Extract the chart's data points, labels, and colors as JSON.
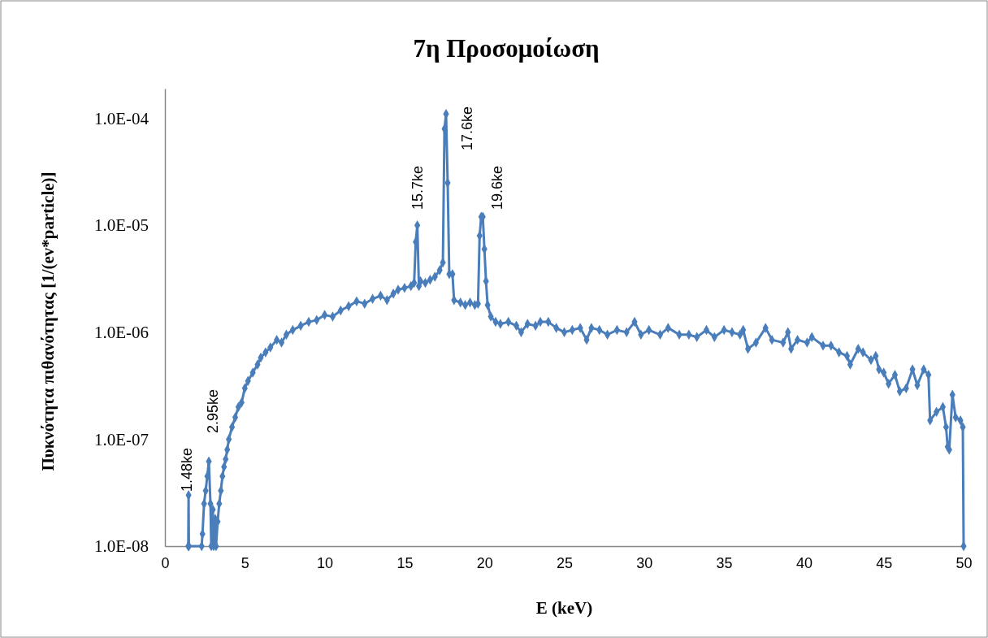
{
  "chart_data": {
    "type": "line",
    "title": "7η Προσομοίωση",
    "xlabel": "E (keV)",
    "ylabel": "Πυκνότητα πιθανότητας [1/(ev*particle)]",
    "log": "y",
    "marker": "diamond",
    "line_style": "solid",
    "grid": false,
    "xlim": [
      0,
      50
    ],
    "xticks": [
      0,
      5,
      10,
      15,
      20,
      25,
      30,
      35,
      40,
      45,
      50
    ],
    "ylim": [
      1e-08,
      0.00019
    ],
    "yticks": [
      {
        "value": 1e-08,
        "label": "1.0E-08"
      },
      {
        "value": 1e-07,
        "label": "1.0E-07"
      },
      {
        "value": 1e-06,
        "label": "1.0E-06"
      },
      {
        "value": 1e-05,
        "label": "1.0E-05"
      },
      {
        "value": 0.0001,
        "label": "1.0E-04"
      }
    ],
    "annotations": [
      "1.48ke",
      "2.95ke",
      "15.7ke",
      "17.6ke",
      "19.6ke"
    ],
    "series": [
      {
        "color": "#4a7ebb",
        "x": [
          1.46,
          1.48,
          1.5,
          2.3,
          2.35,
          2.45,
          2.55,
          2.65,
          2.75,
          2.85,
          2.9,
          3.0,
          3.05,
          3.15,
          3.2,
          3.3,
          3.4,
          3.5,
          3.6,
          3.7,
          3.8,
          3.9,
          4.0,
          4.2,
          4.4,
          4.6,
          4.8,
          5.0,
          5.2,
          5.5,
          5.8,
          6.0,
          6.3,
          6.6,
          7.0,
          7.3,
          7.6,
          8.0,
          8.5,
          9.0,
          9.5,
          10,
          10.5,
          11,
          11.5,
          12,
          12.5,
          13,
          13.5,
          13.9,
          14.3,
          14.6,
          15,
          15.4,
          15.6,
          15.7,
          15.8,
          15.9,
          16.0,
          16.3,
          16.6,
          16.9,
          17.2,
          17.4,
          17.5,
          17.6,
          17.7,
          17.8,
          18.0,
          18.1,
          18.5,
          18.8,
          19.1,
          19.4,
          19.6,
          19.7,
          19.8,
          19.9,
          20.0,
          20.1,
          20.2,
          20.4,
          20.7,
          21,
          21.5,
          22,
          22.3,
          22.7,
          23.2,
          23.5,
          24,
          24.5,
          25,
          25.5,
          26,
          26.4,
          26.7,
          27.2,
          27.7,
          28.3,
          28.9,
          29.4,
          29.8,
          30.3,
          31,
          31.5,
          32.2,
          32.8,
          33.3,
          33.9,
          34.4,
          35,
          35.5,
          36,
          36.2,
          36.5,
          37,
          37.6,
          38,
          38.7,
          39,
          39.2,
          39.6,
          40.2,
          40.5,
          41.2,
          41.7,
          42.2,
          42.7,
          42.9,
          43.4,
          43.7,
          44.2,
          44.5,
          44.7,
          45.0,
          45.3,
          45.7,
          46.0,
          46.4,
          46.8,
          47.1,
          47.5,
          47.8,
          47.9,
          48.3,
          48.7,
          48.9,
          49.0,
          49.1,
          49.3,
          49.5,
          49.8,
          49.95,
          50
        ],
        "values": [
          1e-08,
          3e-08,
          1e-08,
          1e-08,
          1.3e-08,
          2.5e-08,
          3.3e-08,
          4.5e-08,
          6.2e-08,
          2.5e-08,
          1e-08,
          2.2e-08,
          1e-08,
          1.8e-08,
          1e-08,
          1.7e-08,
          2.5e-08,
          3.3e-08,
          4.5e-08,
          5.5e-08,
          6.5e-08,
          8e-08,
          1e-07,
          1.3e-07,
          1.6e-07,
          2e-07,
          2.2e-07,
          3e-07,
          3.5e-07,
          4.2e-07,
          5e-07,
          5.8e-07,
          6.5e-07,
          7.2e-07,
          8.5e-07,
          8e-07,
          9.5e-07,
          1.05e-06,
          1.15e-06,
          1.25e-06,
          1.3e-06,
          1.45e-06,
          1.4e-06,
          1.6e-06,
          1.75e-06,
          1.95e-06,
          1.85e-06,
          2.05e-06,
          2.2e-06,
          2e-06,
          2.3e-06,
          2.5e-06,
          2.6e-06,
          2.7e-06,
          2.9e-06,
          7e-06,
          1e-05,
          2.7e-06,
          3e-06,
          2.9e-06,
          3.1e-06,
          3.3e-06,
          3.8e-06,
          4.5e-06,
          8e-05,
          0.00011,
          2.5e-05,
          3.5e-06,
          3.5e-06,
          2e-06,
          1.9e-06,
          1.8e-06,
          1.9e-06,
          1.8e-06,
          1.85e-06,
          8e-06,
          1.2e-05,
          1.2e-05,
          6e-06,
          3e-06,
          1.8e-06,
          1.4e-06,
          1.25e-06,
          1.2e-06,
          1.25e-06,
          1.15e-06,
          1e-06,
          1.2e-06,
          1.15e-06,
          1.25e-06,
          1.25e-06,
          1.1e-06,
          1e-06,
          1.05e-06,
          1.1e-06,
          8.5e-07,
          1.1e-06,
          1.05e-06,
          9.5e-07,
          1.05e-06,
          1e-06,
          1.25e-06,
          9.5e-07,
          1.05e-06,
          9.5e-07,
          1.1e-06,
          9.5e-07,
          9.5e-07,
          9e-07,
          1.05e-06,
          9e-07,
          1.05e-06,
          1e-06,
          9.5e-07,
          1.05e-06,
          7e-07,
          8e-07,
          1.1e-06,
          8.5e-07,
          8e-07,
          1e-06,
          7e-07,
          8.5e-07,
          8e-07,
          9e-07,
          7.5e-07,
          7.5e-07,
          6.5e-07,
          6e-07,
          5e-07,
          7e-07,
          6.5e-07,
          5.5e-07,
          6e-07,
          4.5e-07,
          4.2e-07,
          3.3e-07,
          4e-07,
          2.8e-07,
          3e-07,
          4.5e-07,
          3.2e-07,
          4.5e-07,
          4e-07,
          1.5e-07,
          1.8e-07,
          2e-07,
          1.3e-07,
          8.5e-08,
          8e-08,
          2.6e-07,
          1.6e-07,
          1.5e-07,
          1.3e-07,
          1e-08
        ]
      }
    ]
  }
}
